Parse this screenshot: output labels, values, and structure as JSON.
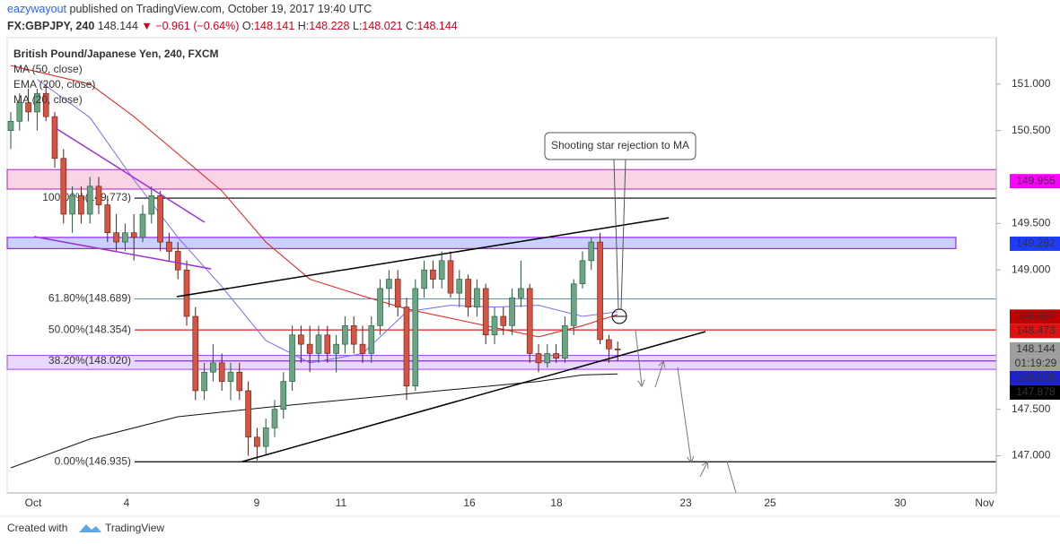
{
  "header": {
    "author": "eazywayout",
    "published": "published on TradingView.com, October 19, 2017 19:40 UTC",
    "symbol": "FX:GBPJPY, 240",
    "last": "148.144",
    "arrow": "▼",
    "change": "−0.961 (−0.64%)",
    "ohlc": [
      [
        "O:",
        "148.141"
      ],
      [
        "H:",
        "148.228"
      ],
      [
        "L:",
        "148.021"
      ],
      [
        "C:",
        "148.144"
      ]
    ]
  },
  "footer": {
    "created": "Created with",
    "brand": "TradingView"
  },
  "chart_data": {
    "type": "candlestick",
    "title": "British Pound/Japanese Yen, 240, FXCM",
    "ylim": [
      146.6,
      151.5
    ],
    "yticks": [
      {
        "value": 151,
        "label": "151.000"
      },
      {
        "value": 150.5,
        "label": "150.500"
      },
      {
        "value": 149.5,
        "label": "149.500"
      },
      {
        "value": 149,
        "label": "149.000"
      },
      {
        "value": 147.5,
        "label": "147.500"
      },
      {
        "value": 147,
        "label": "147.000"
      }
    ],
    "grid": false,
    "categories": [
      "Oct",
      "4",
      "9",
      "11",
      "16",
      "18",
      "23",
      "25",
      "30",
      "Nov"
    ],
    "up_color": "#6ba583",
    "down_color": "#d75442",
    "candles": [
      [
        150.5,
        150.7,
        150.3,
        150.6
      ],
      [
        150.6,
        150.9,
        150.5,
        150.8
      ],
      [
        150.8,
        150.95,
        150.6,
        150.7
      ],
      [
        150.7,
        150.95,
        150.5,
        150.9
      ],
      [
        150.9,
        151.0,
        150.6,
        150.65
      ],
      [
        150.65,
        150.7,
        150.1,
        150.2
      ],
      [
        150.2,
        150.3,
        149.5,
        149.6
      ],
      [
        149.6,
        149.9,
        149.4,
        149.8
      ],
      [
        149.8,
        149.9,
        149.5,
        149.6
      ],
      [
        149.6,
        150.0,
        149.5,
        149.9
      ],
      [
        149.9,
        150.0,
        149.6,
        149.7
      ],
      [
        149.7,
        149.8,
        149.3,
        149.4
      ],
      [
        149.4,
        149.6,
        149.2,
        149.3
      ],
      [
        149.3,
        149.5,
        149.2,
        149.4
      ],
      [
        149.4,
        149.6,
        149.1,
        149.35
      ],
      [
        149.35,
        149.7,
        149.3,
        149.6
      ],
      [
        149.6,
        149.9,
        149.5,
        149.8
      ],
      [
        149.8,
        149.85,
        149.2,
        149.3
      ],
      [
        149.3,
        149.4,
        149.1,
        149.2
      ],
      [
        149.2,
        149.3,
        148.9,
        149.0
      ],
      [
        149.0,
        149.1,
        148.4,
        148.5
      ],
      [
        148.5,
        148.6,
        147.6,
        147.7
      ],
      [
        147.7,
        148.0,
        147.6,
        147.9
      ],
      [
        147.9,
        148.2,
        147.8,
        148.0
      ],
      [
        148.0,
        148.1,
        147.7,
        147.8
      ],
      [
        147.8,
        148.0,
        147.6,
        147.9
      ],
      [
        147.9,
        148.0,
        147.6,
        147.7
      ],
      [
        147.7,
        147.8,
        147.0,
        147.2
      ],
      [
        147.2,
        147.3,
        146.95,
        147.1
      ],
      [
        147.1,
        147.4,
        147.0,
        147.3
      ],
      [
        147.3,
        147.6,
        147.2,
        147.5
      ],
      [
        147.5,
        147.9,
        147.4,
        147.8
      ],
      [
        147.8,
        148.4,
        147.7,
        148.3
      ],
      [
        148.3,
        148.4,
        148.0,
        148.2
      ],
      [
        148.2,
        148.4,
        147.9,
        148.1
      ],
      [
        148.1,
        148.4,
        148.0,
        148.3
      ],
      [
        148.3,
        148.4,
        148.0,
        148.1
      ],
      [
        148.1,
        148.3,
        147.9,
        148.2
      ],
      [
        148.2,
        148.5,
        148.1,
        148.4
      ],
      [
        148.4,
        148.5,
        148.1,
        148.2
      ],
      [
        148.2,
        148.4,
        148.0,
        148.1
      ],
      [
        148.1,
        148.5,
        148.0,
        148.4
      ],
      [
        148.4,
        148.9,
        148.3,
        148.8
      ],
      [
        148.8,
        149.0,
        148.6,
        148.9
      ],
      [
        148.9,
        149.0,
        148.5,
        148.6
      ],
      [
        148.6,
        148.7,
        147.6,
        147.75
      ],
      [
        147.75,
        148.9,
        147.7,
        148.8
      ],
      [
        148.8,
        149.1,
        148.7,
        149.0
      ],
      [
        149.0,
        149.1,
        148.8,
        148.9
      ],
      [
        148.9,
        149.2,
        148.8,
        149.1
      ],
      [
        149.1,
        149.2,
        148.7,
        148.75
      ],
      [
        148.75,
        149.0,
        148.6,
        148.9
      ],
      [
        148.9,
        148.95,
        148.5,
        148.6
      ],
      [
        148.6,
        148.9,
        148.5,
        148.8
      ],
      [
        148.8,
        148.85,
        148.2,
        148.3
      ],
      [
        148.3,
        148.6,
        148.2,
        148.5
      ],
      [
        148.5,
        148.6,
        148.3,
        148.4
      ],
      [
        148.4,
        148.8,
        148.3,
        148.7
      ],
      [
        148.7,
        149.1,
        148.6,
        148.8
      ],
      [
        148.8,
        148.85,
        148.0,
        148.1
      ],
      [
        148.1,
        148.2,
        147.9,
        148.0
      ],
      [
        148.0,
        148.2,
        147.95,
        148.1
      ],
      [
        148.1,
        148.2,
        148.0,
        148.05
      ],
      [
        148.05,
        148.5,
        148.0,
        148.4
      ],
      [
        148.4,
        148.9,
        148.3,
        148.85
      ],
      [
        148.85,
        149.2,
        148.8,
        149.1
      ],
      [
        149.1,
        149.35,
        149.0,
        149.3
      ],
      [
        149.3,
        149.4,
        148.2,
        148.25
      ],
      [
        148.25,
        148.3,
        148.0,
        148.15
      ],
      [
        148.15,
        148.228,
        148.021,
        148.144
      ]
    ],
    "lines": [
      {
        "name": "MA (50, close)",
        "color": "#e31c1c",
        "x": [
          0,
          9,
          14,
          19,
          24,
          29,
          34,
          40,
          45,
          50,
          55,
          60,
          65,
          69
        ],
        "values": [
          151.2,
          151.0,
          150.65,
          150.25,
          149.85,
          149.3,
          148.9,
          148.72,
          148.58,
          148.48,
          148.38,
          148.28,
          148.4,
          148.52
        ]
      },
      {
        "name": "EMA (200, close)",
        "color": "#111111",
        "x": [
          0,
          9,
          19,
          29,
          40,
          50,
          60,
          65,
          69
        ],
        "values": [
          146.87,
          147.18,
          147.42,
          147.52,
          147.62,
          147.71,
          147.8,
          147.87,
          147.88
        ]
      },
      {
        "name": "MA (20, close)",
        "color": "#7b6cf0",
        "x": [
          3,
          9,
          14,
          19,
          24,
          29,
          34,
          40,
          45,
          50,
          55,
          60,
          65,
          69
        ],
        "values": [
          151.05,
          150.64,
          149.97,
          149.35,
          148.82,
          148.24,
          148.0,
          148.1,
          148.55,
          148.62,
          148.6,
          148.62,
          148.5,
          148.55
        ]
      }
    ],
    "fib_levels": [
      {
        "label": "100.00%(149.773)",
        "value": 149.773,
        "color": "#000000"
      },
      {
        "label": "61.80%(148.689)",
        "value": 148.689,
        "color": "#4a7fc1"
      },
      {
        "label": "50.00%(148.354)",
        "value": 148.354,
        "color": "#e31c1c"
      },
      {
        "label": "38.20%(148.020)",
        "value": 148.02,
        "color": "#8e2bd9"
      },
      {
        "label": "0.00%(146.935)",
        "value": 146.935,
        "color": "#000000"
      }
    ],
    "zones": [
      {
        "top": 150.08,
        "bottom": 149.87,
        "fill": "#f7c6dd",
        "stroke": "#b020c0"
      },
      {
        "top": 149.35,
        "bottom": 149.23,
        "fill": "#b7c3ff",
        "stroke": "#8000ff"
      },
      {
        "top": 148.08,
        "bottom": 147.93,
        "fill": "#e3c9fb",
        "stroke": "#a040ff"
      }
    ],
    "price_labels": [
      {
        "value": 149.955,
        "label": "149.955",
        "color": "#ff00ff"
      },
      {
        "value": 149.282,
        "label": "149.282",
        "color": "#1e3cff"
      },
      {
        "value": 148.497,
        "label": "148.497",
        "color": "#c00000"
      },
      {
        "value": 148.473,
        "label": "148.473",
        "color": "#e01010"
      },
      {
        "value": 148.144,
        "label": "148.144",
        "color": "#9e9e9e"
      },
      {
        "value": 148.005,
        "label": "148.005",
        "color": "#1e22cc"
      },
      {
        "value": 147.878,
        "label": "147.878",
        "color": "#000000"
      }
    ],
    "countdown": "01:19:29",
    "annotation": "Shooting star rejection to MA"
  }
}
